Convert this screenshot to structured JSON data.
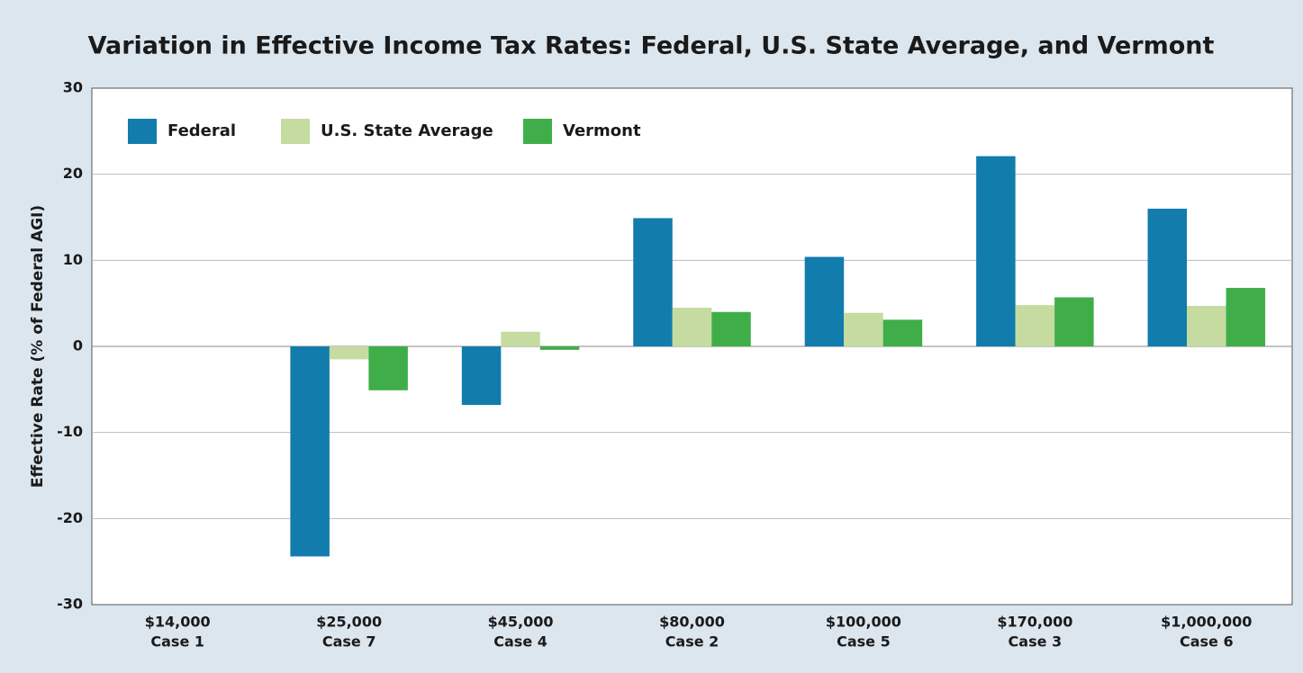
{
  "chart_data": {
    "type": "bar",
    "title": "Variation in Effective Income Tax Rates: Federal, U.S. State Average, and Vermont",
    "y_label": "Effective Rate (% of Federal AGI)",
    "categories": [
      [
        "$14,000",
        "Case 1"
      ],
      [
        "$25,000",
        "Case 7"
      ],
      [
        "$45,000",
        "Case 4"
      ],
      [
        "$80,000",
        "Case 2"
      ],
      [
        "$100,000",
        "Case 5"
      ],
      [
        "$170,000",
        "Case 3"
      ],
      [
        "$1,000,000",
        "Case 6"
      ]
    ],
    "series": [
      {
        "name": "Federal",
        "color": "#127cac",
        "values": [
          0,
          -24.4,
          -6.8,
          14.9,
          10.4,
          22.1,
          16.0
        ]
      },
      {
        "name": "U.S. State Average",
        "color": "#c5dba0",
        "values": [
          0,
          -1.5,
          1.7,
          4.5,
          3.9,
          4.8,
          4.7
        ]
      },
      {
        "name": "Vermont",
        "color": "#3fae49",
        "values": [
          0,
          -5.1,
          -0.4,
          4.0,
          3.1,
          5.7,
          6.8
        ]
      }
    ],
    "ylim": [
      -30,
      30
    ],
    "yticks": [
      -30,
      -20,
      -10,
      0,
      10,
      20,
      30
    ],
    "grid": true,
    "legend": "top-left"
  }
}
